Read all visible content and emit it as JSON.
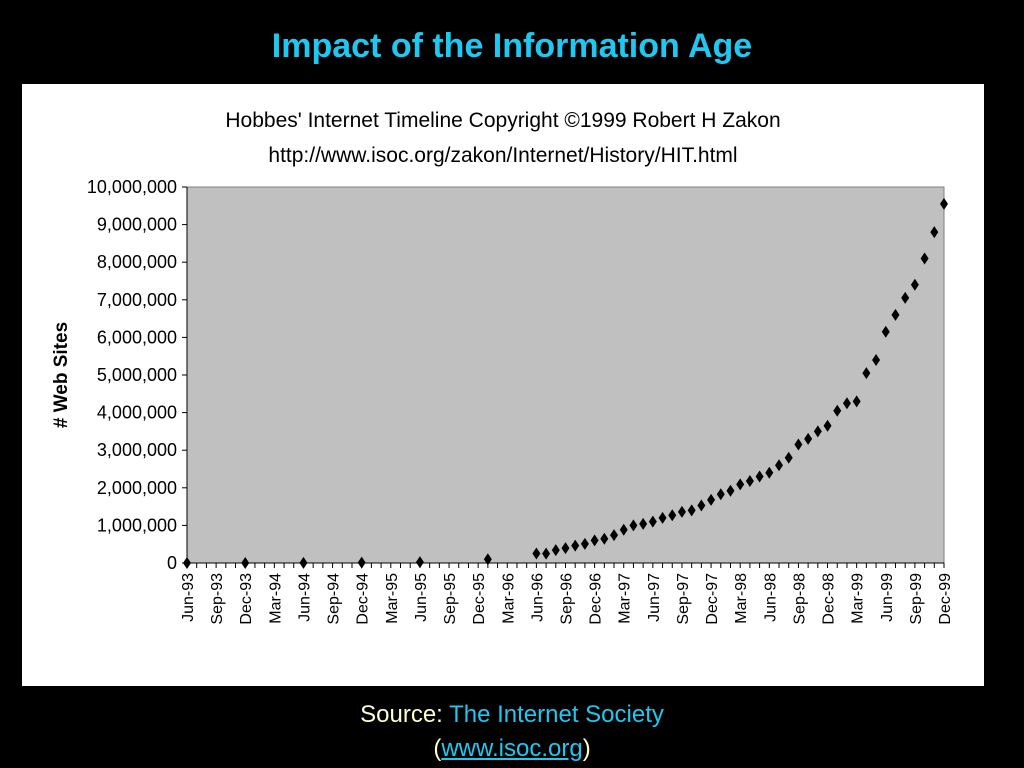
{
  "slide": {
    "title": "Impact of the Information Age",
    "source_label": "Source:",
    "source_org": "The Internet Society",
    "paren_open": "(",
    "source_url": "www.isoc.org",
    "paren_close": ")"
  },
  "colors": {
    "background": "#000000",
    "title": "#1ec8f0",
    "plot_area": "#c0c0c0",
    "source_text": "#ffffcc",
    "link": "#1ec8f0",
    "marker": "#000000"
  },
  "chart_data": {
    "type": "scatter",
    "title": "Hobbes' Internet Timeline Copyright ©1999 Robert H Zakon",
    "subtitle": "http://www.isoc.org/zakon/Internet/History/HIT.html",
    "xlabel": "",
    "ylabel": "# Web Sites",
    "ylim": [
      0,
      10000000
    ],
    "yticks": [
      0,
      1000000,
      2000000,
      3000000,
      4000000,
      5000000,
      6000000,
      7000000,
      8000000,
      9000000,
      10000000
    ],
    "ytick_labels": [
      "0",
      "1,000,000",
      "2,000,000",
      "3,000,000",
      "4,000,000",
      "5,000,000",
      "6,000,000",
      "7,000,000",
      "8,000,000",
      "9,000,000",
      "10,000,000"
    ],
    "x_start": "Jun-93",
    "x_end": "Dec-99",
    "xtick_labels": [
      "Jun-93",
      "Sep-93",
      "Dec-93",
      "Mar-94",
      "Jun-94",
      "Sep-94",
      "Dec-94",
      "Mar-95",
      "Jun-95",
      "Sep-95",
      "Dec-95",
      "Mar-96",
      "Jun-96",
      "Sep-96",
      "Dec-96",
      "Mar-97",
      "Jun-97",
      "Sep-97",
      "Dec-97",
      "Mar-98",
      "Jun-98",
      "Sep-98",
      "Dec-98",
      "Mar-99",
      "Jun-99",
      "Sep-99",
      "Dec-99"
    ],
    "grid": false,
    "legend": "none",
    "series": [
      {
        "points": [
          {
            "x": "Jun-93",
            "y": 130
          },
          {
            "x": "Dec-93",
            "y": 623
          },
          {
            "x": "Jun-94",
            "y": 2738
          },
          {
            "x": "Dec-94",
            "y": 10022
          },
          {
            "x": "Jun-95",
            "y": 23500
          },
          {
            "x": "Jan-96",
            "y": 100000
          },
          {
            "x": "Jun-96",
            "y": 252000
          },
          {
            "x": "Jul-96",
            "y": 250000
          },
          {
            "x": "Aug-96",
            "y": 342000
          },
          {
            "x": "Sep-96",
            "y": 397000
          },
          {
            "x": "Oct-96",
            "y": 462000
          },
          {
            "x": "Nov-96",
            "y": 510000
          },
          {
            "x": "Dec-96",
            "y": 603000
          },
          {
            "x": "Jan-97",
            "y": 646000
          },
          {
            "x": "Feb-97",
            "y": 740000
          },
          {
            "x": "Mar-97",
            "y": 883000
          },
          {
            "x": "Apr-97",
            "y": 1000000
          },
          {
            "x": "May-97",
            "y": 1040000
          },
          {
            "x": "Jun-97",
            "y": 1100000
          },
          {
            "x": "Jul-97",
            "y": 1200000
          },
          {
            "x": "Aug-97",
            "y": 1270000
          },
          {
            "x": "Sep-97",
            "y": 1360000
          },
          {
            "x": "Oct-97",
            "y": 1400000
          },
          {
            "x": "Nov-97",
            "y": 1530000
          },
          {
            "x": "Dec-97",
            "y": 1680000
          },
          {
            "x": "Jan-98",
            "y": 1830000
          },
          {
            "x": "Feb-98",
            "y": 1920000
          },
          {
            "x": "Mar-98",
            "y": 2090000
          },
          {
            "x": "Apr-98",
            "y": 2180000
          },
          {
            "x": "May-98",
            "y": 2300000
          },
          {
            "x": "Jun-98",
            "y": 2400000
          },
          {
            "x": "Jul-98",
            "y": 2600000
          },
          {
            "x": "Aug-98",
            "y": 2800000
          },
          {
            "x": "Sep-98",
            "y": 3150000
          },
          {
            "x": "Oct-98",
            "y": 3300000
          },
          {
            "x": "Nov-98",
            "y": 3500000
          },
          {
            "x": "Dec-98",
            "y": 3650000
          },
          {
            "x": "Jan-99",
            "y": 4050000
          },
          {
            "x": "Feb-99",
            "y": 4250000
          },
          {
            "x": "Mar-99",
            "y": 4300000
          },
          {
            "x": "Apr-99",
            "y": 5050000
          },
          {
            "x": "May-99",
            "y": 5400000
          },
          {
            "x": "Jun-99",
            "y": 6150000
          },
          {
            "x": "Jul-99",
            "y": 6600000
          },
          {
            "x": "Aug-99",
            "y": 7050000
          },
          {
            "x": "Sep-99",
            "y": 7400000
          },
          {
            "x": "Oct-99",
            "y": 8100000
          },
          {
            "x": "Nov-99",
            "y": 8800000
          },
          {
            "x": "Dec-99",
            "y": 9550000
          }
        ]
      }
    ]
  }
}
